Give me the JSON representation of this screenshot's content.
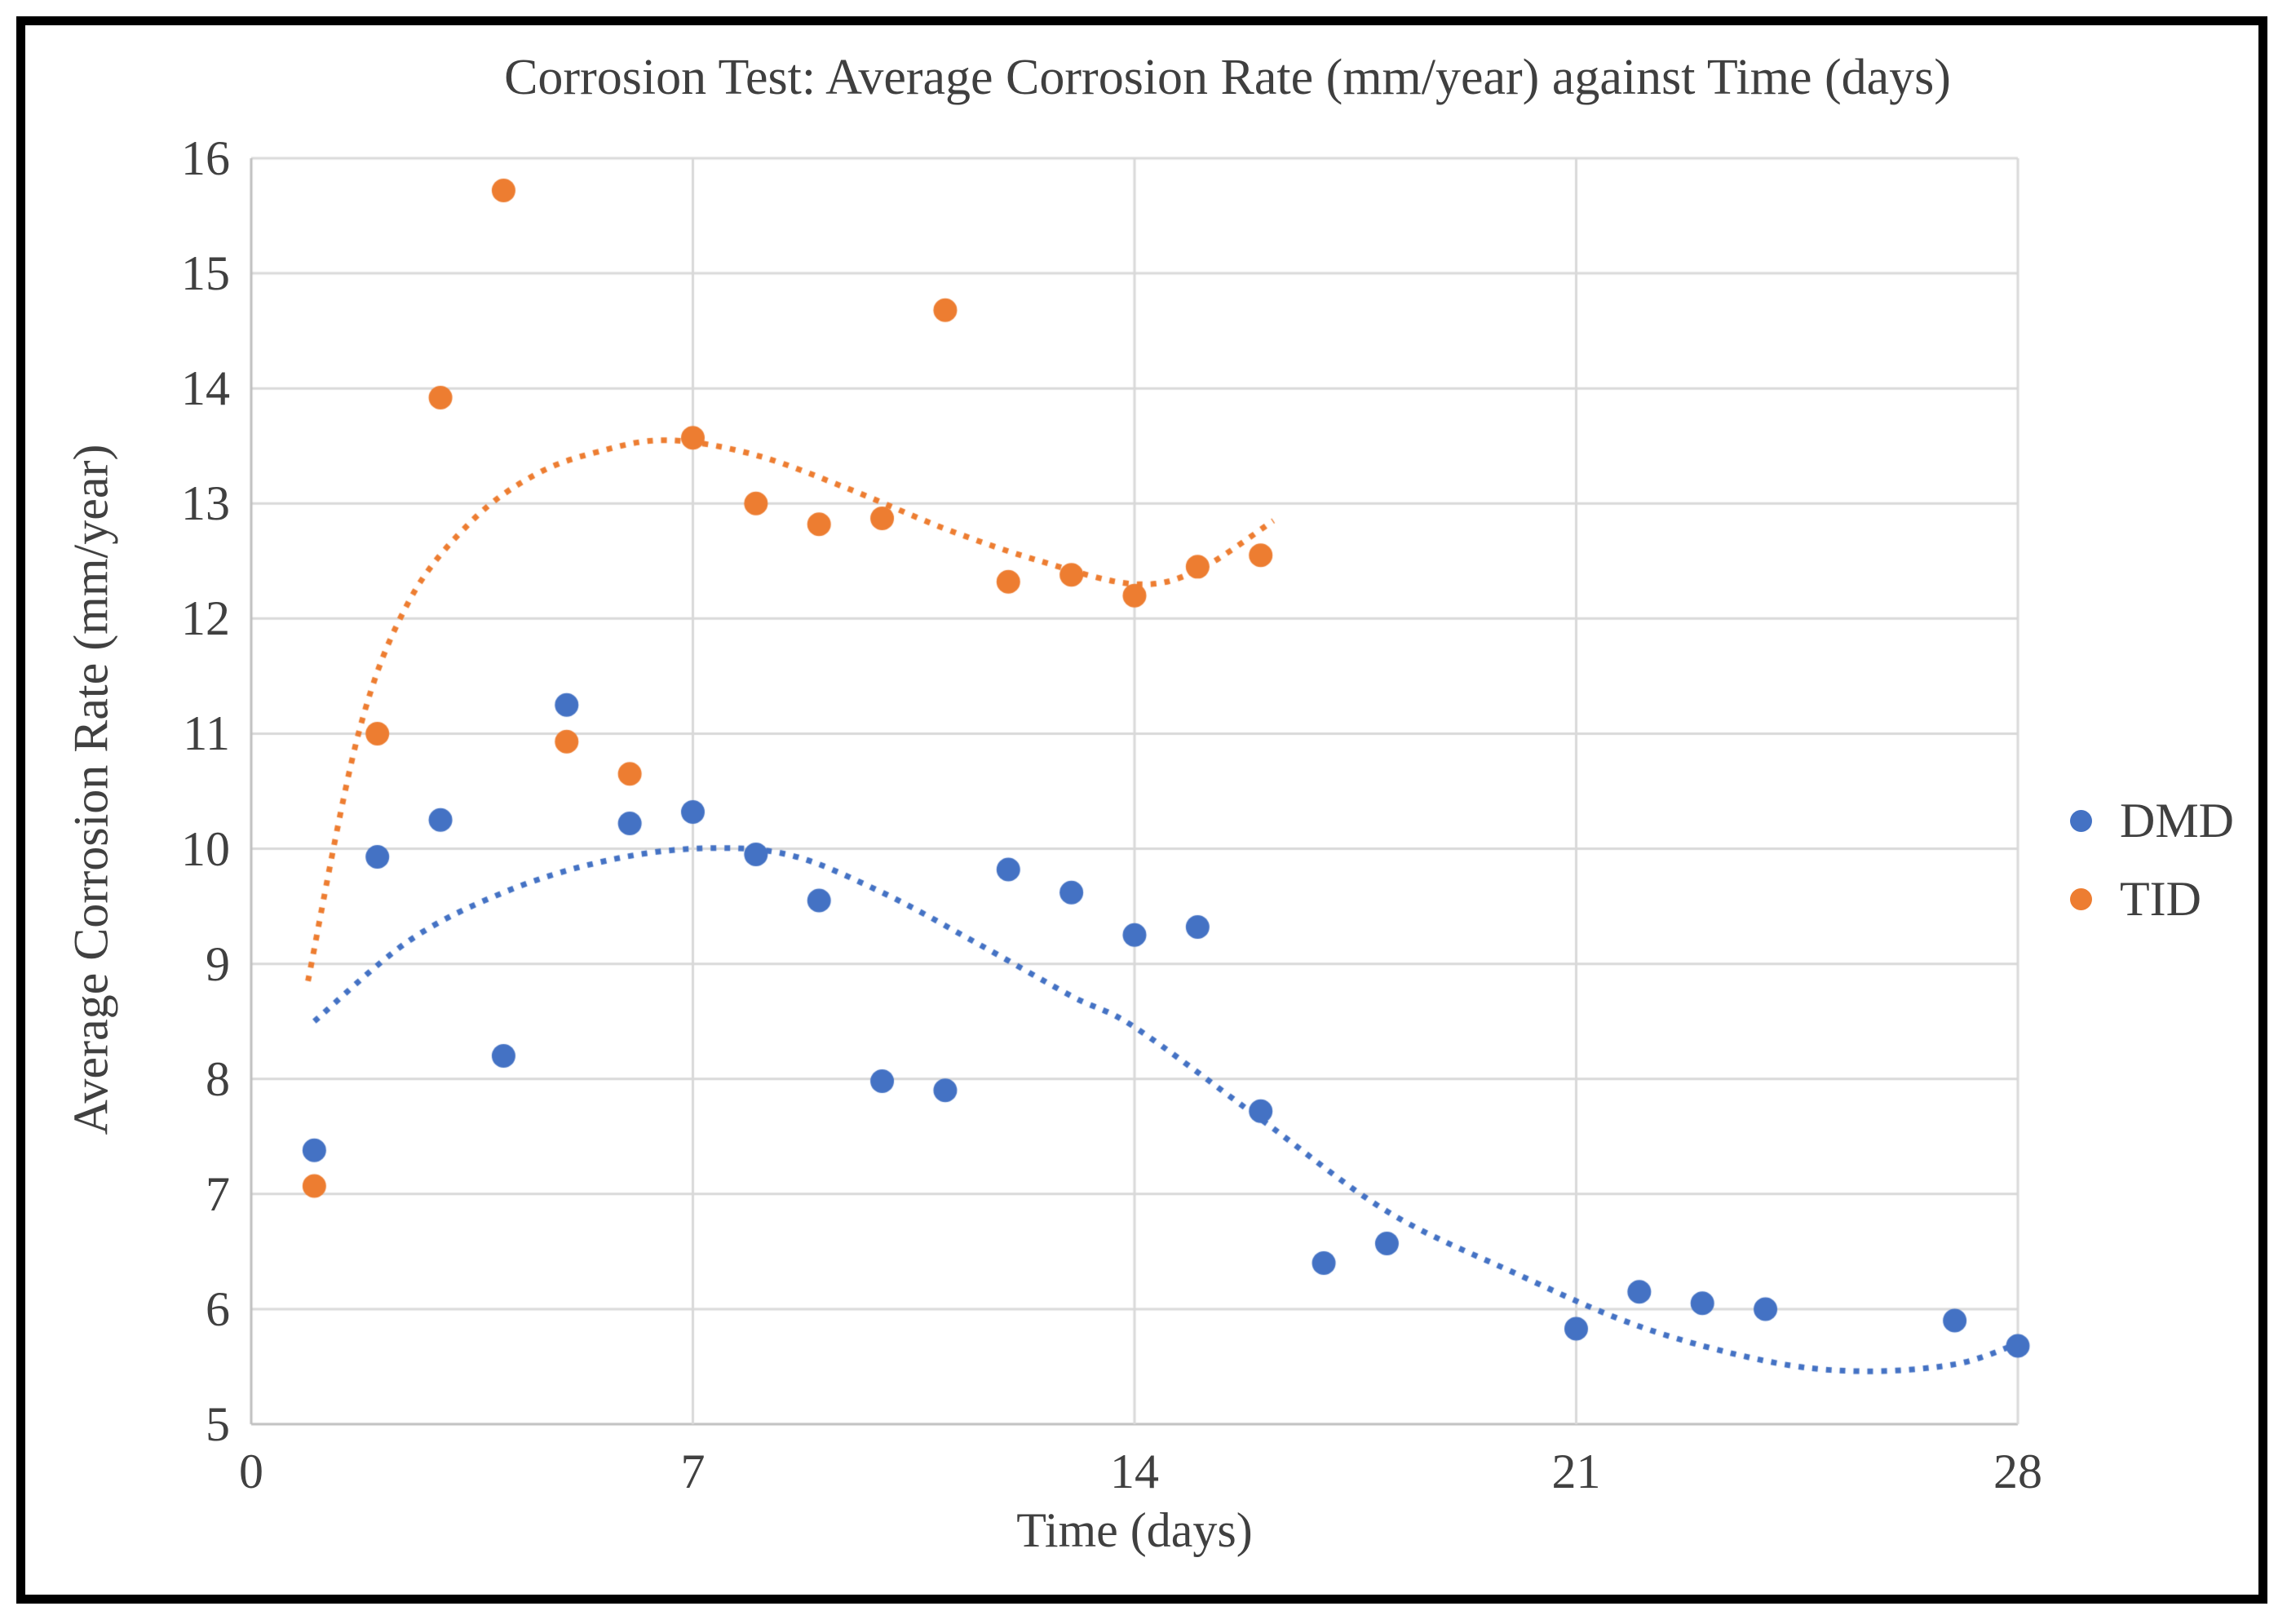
{
  "chart_data": {
    "type": "scatter",
    "title": "Corrosion Test: Average Corrosion Rate (mm/year) against Time (days)",
    "xlabel": "Time (days)",
    "ylabel": "Average Corrosion Rate (mm/year)",
    "xlim": [
      0,
      28
    ],
    "ylim": [
      5,
      16
    ],
    "xticks": [
      0,
      7,
      14,
      21,
      28
    ],
    "yticks": [
      5,
      6,
      7,
      8,
      9,
      10,
      11,
      12,
      13,
      14,
      15,
      16
    ],
    "grid": true,
    "gridline_color": "#d9d9d9",
    "axis_line_color": "#bfbfbf",
    "legend_position": "right",
    "series": [
      {
        "name": "DMD",
        "color": "#4472C4",
        "marker": "circle",
        "x": [
          1,
          2,
          3,
          4,
          5,
          6,
          7,
          8,
          9,
          10,
          11,
          12,
          13,
          14,
          15,
          16,
          17,
          18,
          21,
          22,
          23,
          24,
          27,
          28
        ],
        "y": [
          7.38,
          9.93,
          10.25,
          8.2,
          11.25,
          10.22,
          10.32,
          9.95,
          9.55,
          7.98,
          7.9,
          9.82,
          9.62,
          9.25,
          9.32,
          7.72,
          6.4,
          6.57,
          5.83,
          6.15,
          6.05,
          6.0,
          5.9,
          5.68
        ],
        "trendline": {
          "style": "dotted",
          "points": [
            [
              1,
              8.5
            ],
            [
              2.5,
              9.2
            ],
            [
              4,
              9.62
            ],
            [
              5.5,
              9.88
            ],
            [
              7,
              10.0
            ],
            [
              8.5,
              9.95
            ],
            [
              10,
              9.62
            ],
            [
              11.5,
              9.18
            ],
            [
              13,
              8.72
            ],
            [
              14,
              8.45
            ],
            [
              16,
              7.65
            ],
            [
              18,
              6.85
            ],
            [
              20,
              6.32
            ],
            [
              22,
              5.85
            ],
            [
              24,
              5.55
            ],
            [
              25.5,
              5.46
            ],
            [
              27,
              5.52
            ],
            [
              28,
              5.7
            ]
          ]
        }
      },
      {
        "name": "TID",
        "color": "#ED7D31",
        "marker": "circle",
        "x": [
          1,
          2,
          3,
          4,
          5,
          6,
          7,
          8,
          9,
          10,
          11,
          12,
          13,
          14,
          15,
          16
        ],
        "y": [
          7.07,
          11.0,
          13.92,
          15.72,
          10.93,
          10.65,
          13.57,
          13.0,
          12.82,
          12.87,
          14.68,
          12.32,
          12.38,
          12.2,
          12.45,
          12.55
        ],
        "trendline": {
          "style": "dotted",
          "points": [
            [
              0.9,
              8.85
            ],
            [
              1.7,
              11.0
            ],
            [
              2.5,
              12.15
            ],
            [
              3.5,
              12.85
            ],
            [
              4.5,
              13.25
            ],
            [
              5.5,
              13.45
            ],
            [
              6.6,
              13.55
            ],
            [
              8,
              13.42
            ],
            [
              9.5,
              13.12
            ],
            [
              11,
              12.78
            ],
            [
              12.5,
              12.5
            ],
            [
              14,
              12.3
            ],
            [
              15,
              12.42
            ],
            [
              16.2,
              12.85
            ]
          ]
        }
      }
    ]
  }
}
